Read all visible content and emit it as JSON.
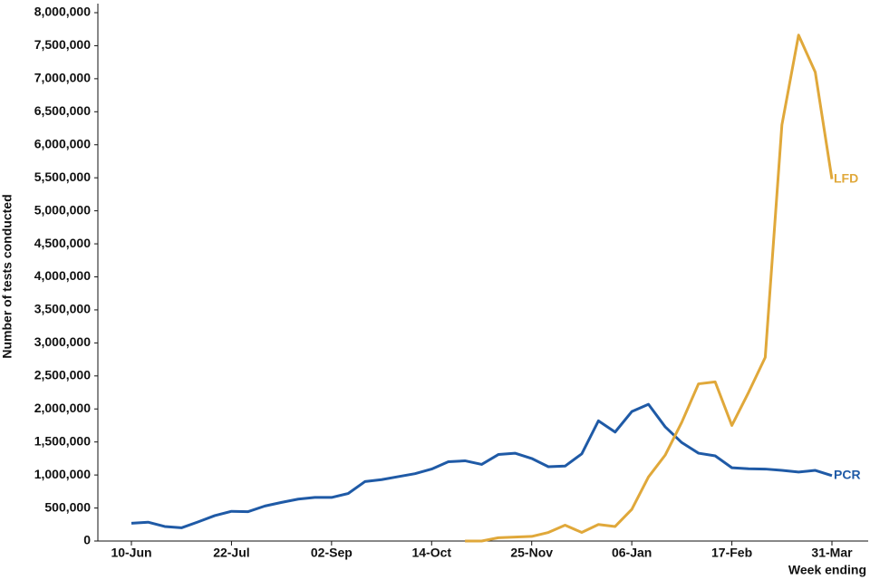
{
  "chart_data": {
    "type": "line",
    "ylabel": "Number of tests conducted",
    "xlabel": "Week ending",
    "categories": [
      "10-Jun",
      null,
      null,
      null,
      null,
      null,
      "22-Jul",
      null,
      null,
      null,
      null,
      null,
      "02-Sep",
      null,
      null,
      null,
      null,
      null,
      "14-Oct",
      null,
      null,
      null,
      null,
      null,
      "25-Nov",
      null,
      null,
      null,
      null,
      null,
      "06-Jan",
      null,
      null,
      null,
      null,
      null,
      "17-Feb",
      null,
      null,
      null,
      null,
      null,
      "31-Mar"
    ],
    "series": [
      {
        "name": "PCR",
        "color": "#1f5aa6",
        "values": [
          270000,
          285000,
          220000,
          200000,
          290000,
          385000,
          450000,
          445000,
          530000,
          585000,
          635000,
          660000,
          660000,
          720000,
          900000,
          930000,
          975000,
          1020000,
          1090000,
          1200000,
          1215000,
          1160000,
          1310000,
          1330000,
          1250000,
          1125000,
          1135000,
          1320000,
          1820000,
          1650000,
          1960000,
          2070000,
          1730000,
          1490000,
          1330000,
          1290000,
          1110000,
          1095000,
          1090000,
          1070000,
          1045000,
          1070000,
          990000
        ]
      },
      {
        "name": "LFD",
        "color": "#e0a83a",
        "values": [
          null,
          null,
          null,
          null,
          null,
          null,
          null,
          null,
          null,
          null,
          null,
          null,
          null,
          null,
          null,
          null,
          null,
          null,
          null,
          null,
          0,
          0,
          50000,
          60000,
          70000,
          130000,
          240000,
          130000,
          250000,
          220000,
          480000,
          970000,
          1300000,
          1800000,
          2380000,
          2410000,
          1750000,
          2250000,
          2780000,
          6300000,
          7660000,
          7100000,
          5480000
        ]
      }
    ],
    "ylim": [
      0,
      8000000
    ],
    "yticks": [
      0,
      {
        "value": 500000,
        "label": "500,000"
      },
      {
        "value": 1000000,
        "label": "1,000,000"
      },
      {
        "value": 1500000,
        "label": "1,500,000"
      },
      {
        "value": 2000000,
        "label": "2,000,000"
      },
      {
        "value": 2500000,
        "label": "2,500,000"
      },
      {
        "value": 3000000,
        "label": "3,000,000"
      },
      {
        "value": 3500000,
        "label": "3,500,000"
      },
      {
        "value": 4000000,
        "label": "4,000,000"
      },
      {
        "value": 4500000,
        "label": "4,500,000"
      },
      {
        "value": 5000000,
        "label": "5,000,000"
      },
      {
        "value": 5500000,
        "label": "5,500,000"
      },
      {
        "value": 6000000,
        "label": "6,000,000"
      },
      {
        "value": 6500000,
        "label": "6,500,000"
      },
      {
        "value": 7000000,
        "label": "7,000,000"
      },
      {
        "value": 7500000,
        "label": "7,500,000"
      },
      {
        "value": 8000000,
        "label": "8,000,000"
      }
    ],
    "grid": false
  }
}
